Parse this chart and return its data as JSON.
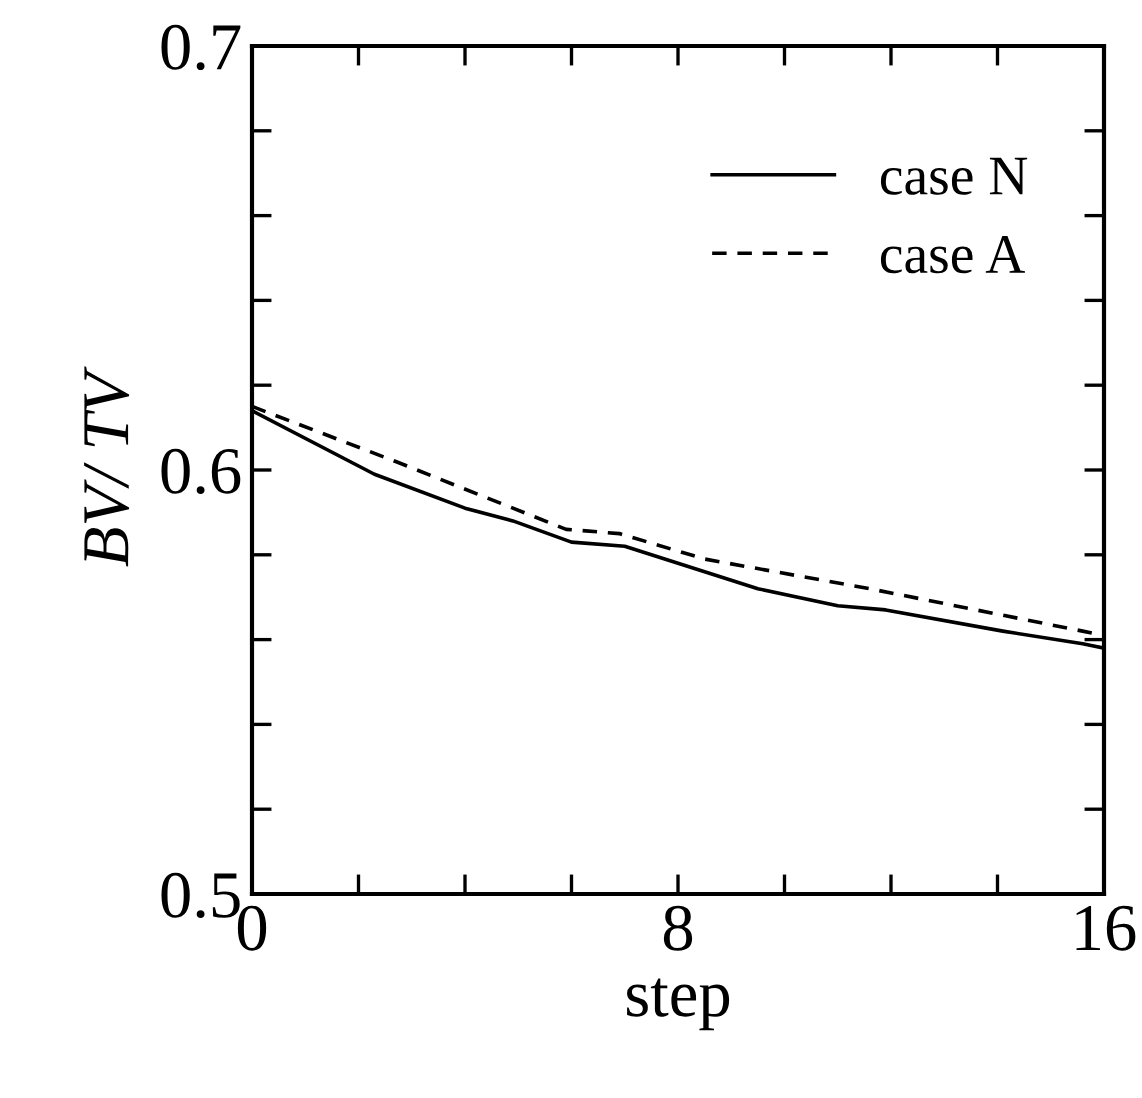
{
  "chart_data": {
    "type": "line",
    "xlabel": "step",
    "ylabel": "BV/ TV",
    "xlim": [
      0,
      16
    ],
    "ylim": [
      0.5,
      0.7
    ],
    "xticks": [
      0,
      {
        "value": 2,
        "label": null
      },
      {
        "value": 4,
        "label": null
      },
      {
        "value": 6,
        "label": null
      },
      8,
      {
        "value": 10,
        "label": null
      },
      {
        "value": 12,
        "label": null
      },
      {
        "value": 14,
        "label": null
      },
      16
    ],
    "yticks": [
      0.5,
      {
        "value": 0.52,
        "label": null
      },
      {
        "value": 0.54,
        "label": null
      },
      {
        "value": 0.56,
        "label": null
      },
      {
        "value": 0.58,
        "label": null
      },
      0.6,
      {
        "value": 0.62,
        "label": null
      },
      {
        "value": 0.64,
        "label": null
      },
      {
        "value": 0.66,
        "label": null
      },
      {
        "value": 0.68,
        "label": null
      },
      0.7
    ],
    "grid": false,
    "legend": "top right",
    "marker": "none",
    "series": [
      {
        "name": "case N",
        "color": "#000000",
        "line_style": "solid",
        "x": [
          0,
          2.3,
          4.0,
          4.9,
          6.0,
          7.0,
          9.5,
          11.0,
          11.9,
          14.1,
          15.6,
          16
        ],
        "values": [
          0.614,
          0.599,
          0.591,
          0.588,
          0.583,
          0.582,
          0.572,
          0.568,
          0.567,
          0.562,
          0.559,
          0.558
        ]
      },
      {
        "name": "case A",
        "color": "#000000",
        "line_style": "dashed",
        "x": [
          0,
          2.7,
          4.7,
          5.9,
          6.9,
          8.5,
          11.6,
          15.6,
          16
        ],
        "values": [
          0.615,
          0.602,
          0.592,
          0.586,
          0.585,
          0.579,
          0.572,
          0.562,
          0.561
        ]
      }
    ]
  }
}
